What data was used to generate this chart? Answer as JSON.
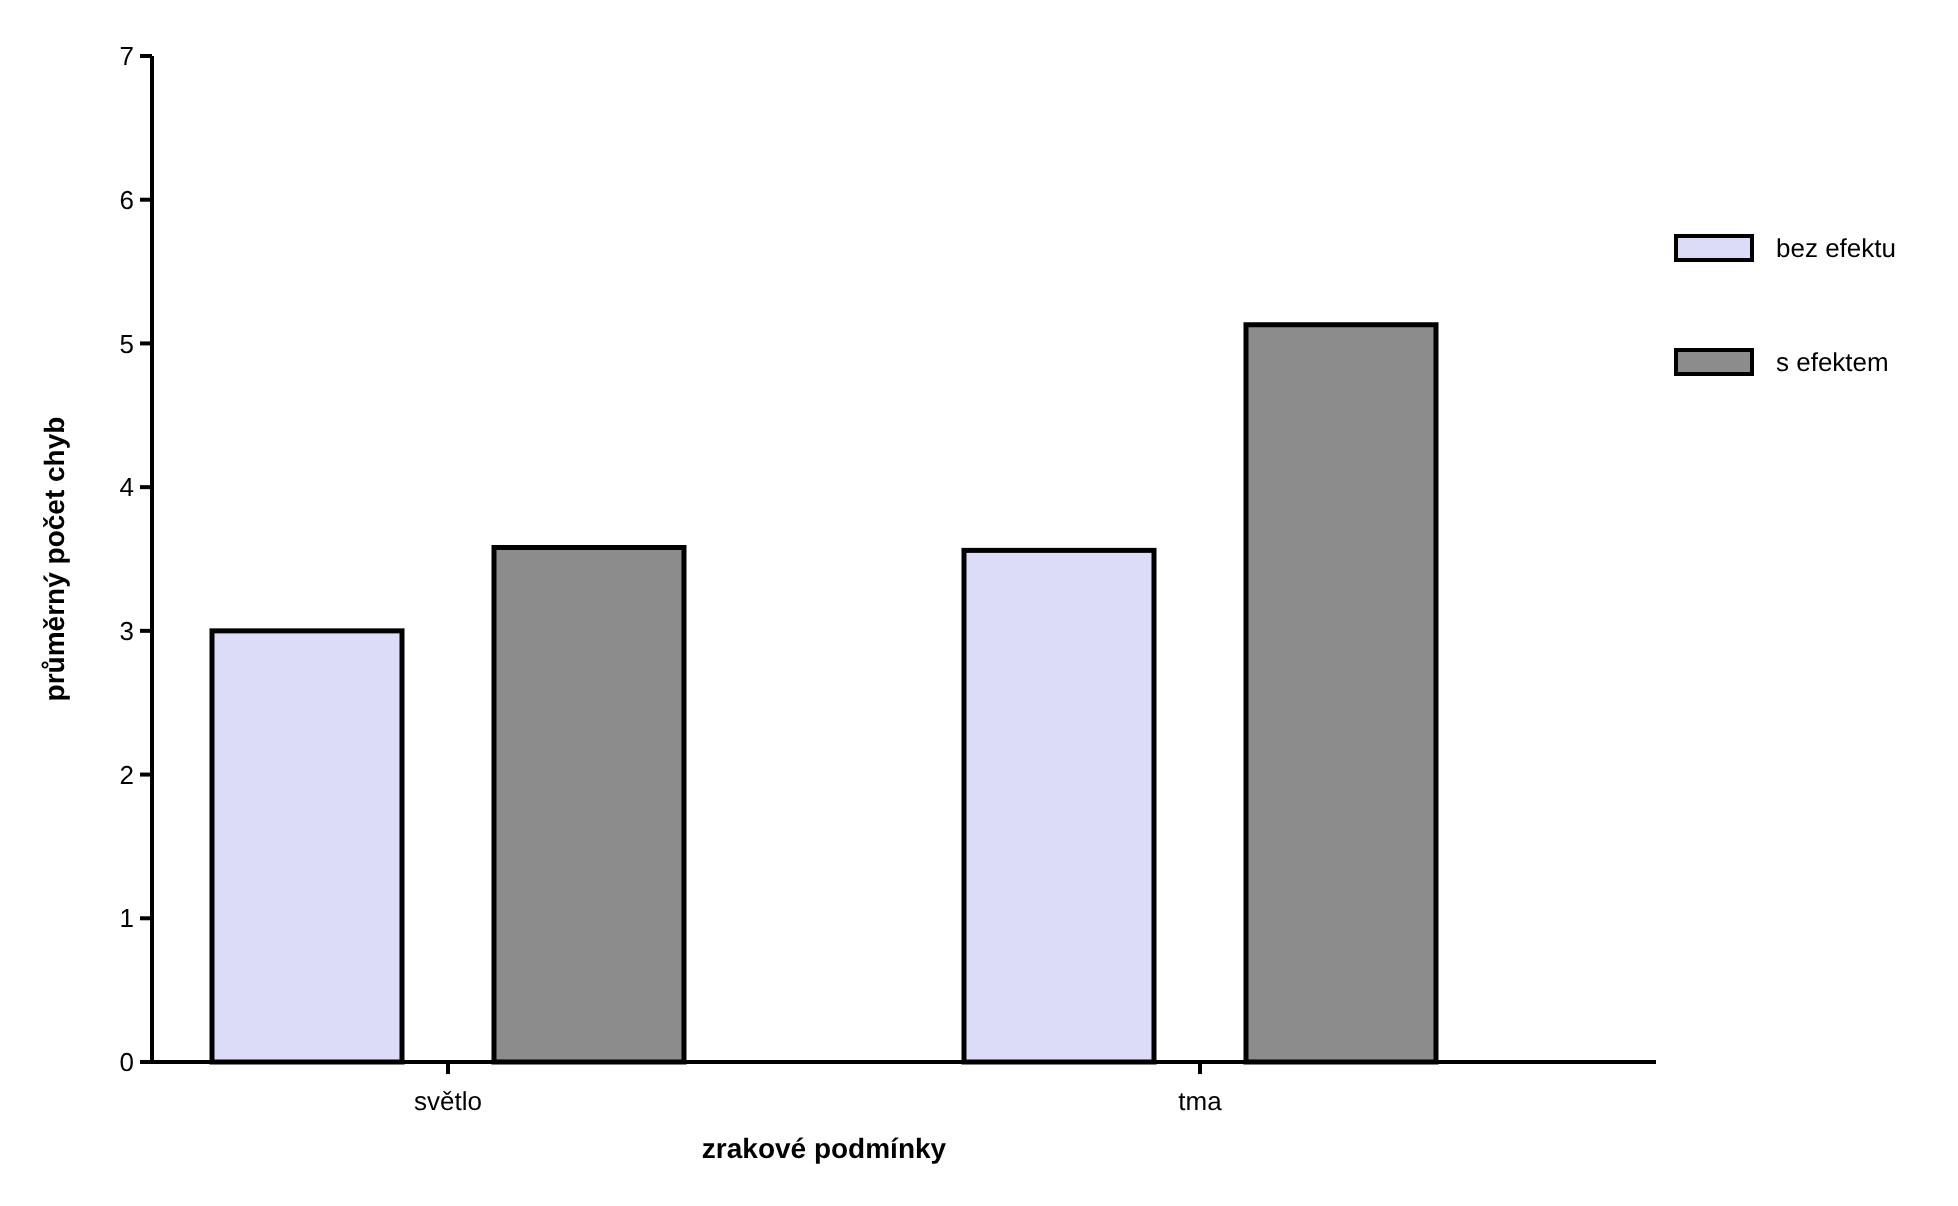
{
  "chart_data": {
    "type": "bar",
    "xlabel": "zrakové podmínky",
    "ylabel": "průměrný počet chyb",
    "categories": [
      "světlo",
      "tma"
    ],
    "series": [
      {
        "name": "bez efektu",
        "color": "#dcdcf8",
        "values": [
          3.0,
          3.56
        ]
      },
      {
        "name": "s efektem",
        "color": "#8c8c8c",
        "values": [
          3.58,
          5.13
        ]
      }
    ],
    "ylim": [
      0,
      7
    ],
    "yticks": [
      0,
      1,
      2,
      3,
      4,
      5,
      6,
      7
    ],
    "legend": "right"
  }
}
